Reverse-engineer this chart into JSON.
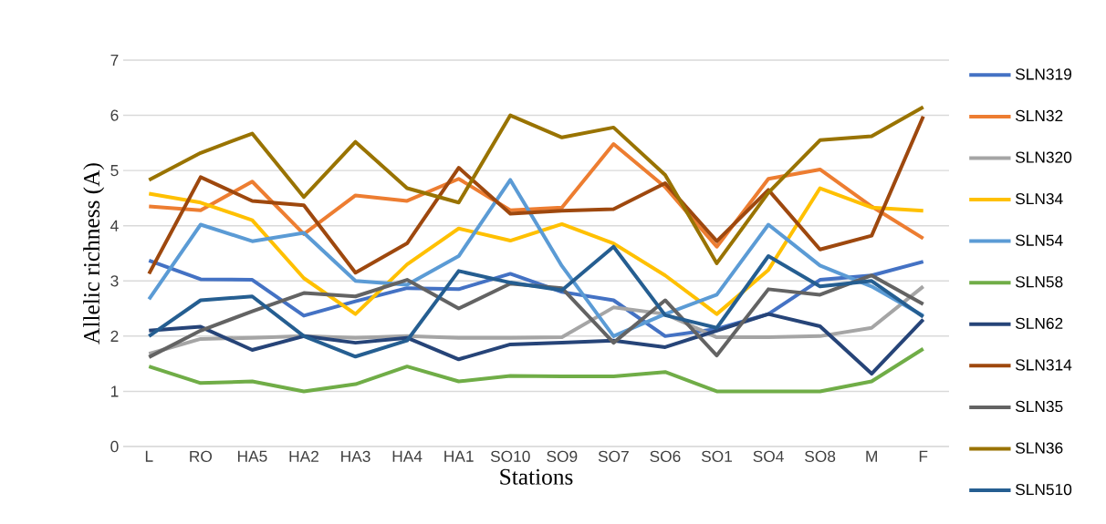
{
  "chart_data": {
    "type": "line",
    "xlabel": "Stations",
    "ylabel": "Allelic richness (A)",
    "categories": [
      "L",
      "RO",
      "HA5",
      "HA2",
      "HA3",
      "HA4",
      "HA1",
      "SO10",
      "SO9",
      "SO7",
      "SO6",
      "SO1",
      "SO4",
      "SO8",
      "M",
      "F"
    ],
    "ylim": [
      0,
      7
    ],
    "yticks": [
      0,
      1,
      2,
      3,
      4,
      5,
      6,
      7
    ],
    "grid": "y",
    "legend": "right",
    "marker": "none",
    "line_style": "solid",
    "series": [
      {
        "name": "SLN319",
        "color": "#4472c4",
        "values": [
          3.37,
          3.03,
          3.02,
          2.37,
          2.63,
          2.87,
          2.85,
          3.13,
          2.8,
          2.65,
          2.0,
          2.13,
          2.4,
          3.02,
          3.1,
          3.35
        ]
      },
      {
        "name": "SLN32",
        "color": "#ed7d31",
        "values": [
          4.35,
          4.28,
          4.8,
          3.85,
          4.55,
          4.45,
          4.85,
          4.28,
          4.33,
          5.48,
          4.7,
          3.62,
          4.85,
          5.02,
          4.35,
          3.77
        ]
      },
      {
        "name": "SLN320",
        "color": "#a5a5a5",
        "values": [
          1.68,
          1.95,
          1.97,
          2.0,
          1.97,
          2.0,
          1.97,
          1.97,
          1.98,
          2.52,
          2.4,
          1.98,
          1.98,
          2.0,
          2.15,
          2.9
        ]
      },
      {
        "name": "SLN34",
        "color": "#ffc000",
        "values": [
          4.58,
          4.42,
          4.1,
          3.05,
          2.4,
          3.3,
          3.95,
          3.73,
          4.03,
          3.68,
          3.1,
          2.4,
          3.2,
          4.68,
          4.33,
          4.27
        ]
      },
      {
        "name": "SLN54",
        "color": "#5b9bd5",
        "values": [
          2.67,
          4.02,
          3.72,
          3.87,
          3.0,
          2.93,
          3.45,
          4.83,
          3.27,
          2.0,
          2.4,
          2.75,
          4.02,
          3.28,
          2.9,
          2.37
        ]
      },
      {
        "name": "SLN58",
        "color": "#70ad47",
        "values": [
          1.45,
          1.15,
          1.18,
          1.0,
          1.13,
          1.45,
          1.18,
          1.28,
          1.27,
          1.27,
          1.35,
          1.0,
          1.0,
          1.0,
          1.18,
          1.77
        ]
      },
      {
        "name": "SLN62",
        "color": "#264478",
        "values": [
          2.1,
          2.17,
          1.75,
          2.0,
          1.88,
          1.97,
          1.58,
          1.85,
          1.88,
          1.92,
          1.8,
          2.1,
          2.4,
          2.18,
          1.32,
          2.3
        ]
      },
      {
        "name": "SLN314",
        "color": "#9e480e",
        "values": [
          3.13,
          4.88,
          4.45,
          4.37,
          3.15,
          3.68,
          5.05,
          4.22,
          4.27,
          4.3,
          4.77,
          3.72,
          4.65,
          3.57,
          3.82,
          5.98
        ]
      },
      {
        "name": "SLN35",
        "color": "#636363",
        "values": [
          1.62,
          2.1,
          2.45,
          2.78,
          2.72,
          3.02,
          2.5,
          2.95,
          2.87,
          1.88,
          2.65,
          1.65,
          2.85,
          2.75,
          3.1,
          2.58
        ]
      },
      {
        "name": "SLN36",
        "color": "#997300",
        "values": [
          4.83,
          5.32,
          5.67,
          4.52,
          5.52,
          4.68,
          4.42,
          6.0,
          5.6,
          5.78,
          4.92,
          3.32,
          4.6,
          5.55,
          5.62,
          6.15
        ]
      },
      {
        "name": "SLN510",
        "color": "#255e91",
        "values": [
          2.0,
          2.65,
          2.72,
          2.0,
          1.63,
          1.92,
          3.18,
          2.97,
          2.83,
          3.62,
          2.38,
          2.15,
          3.45,
          2.9,
          3.0,
          2.35
        ]
      }
    ]
  }
}
